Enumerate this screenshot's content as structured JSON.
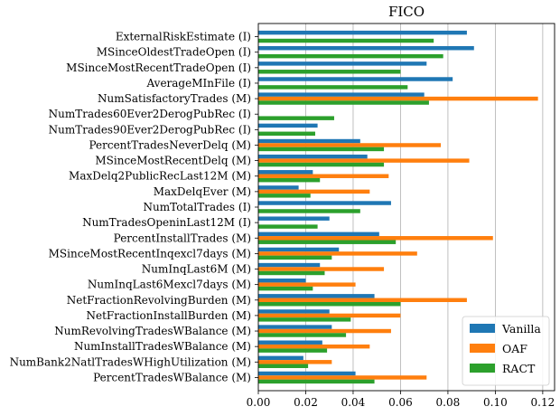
{
  "chart_data": {
    "type": "bar",
    "orientation": "horizontal",
    "title": "FICO",
    "xlabel": "",
    "ylabel": "",
    "xlim": [
      0,
      0.125
    ],
    "xticks": [
      0.0,
      0.02,
      0.04,
      0.06,
      0.08,
      0.1,
      0.12
    ],
    "xtick_labels": [
      "0.00",
      "0.02",
      "0.04",
      "0.06",
      "0.08",
      "0.10",
      "0.12"
    ],
    "grid": "vertical gridlines at x ticks",
    "legend_position": "lower-right",
    "categories": [
      "ExternalRiskEstimate (I)",
      "MSinceOldestTradeOpen (I)",
      "MSinceMostRecentTradeOpen (I)",
      "AverageMInFile (I)",
      "NumSatisfactoryTrades (M)",
      "NumTrades60Ever2DerogPubRec (I)",
      "NumTrades90Ever2DerogPubRec (I)",
      "PercentTradesNeverDelq (M)",
      "MSinceMostRecentDelq (M)",
      "MaxDelq2PublicRecLast12M (M)",
      "MaxDelqEver (M)",
      "NumTotalTrades (I)",
      "NumTradesOpeninLast12M (I)",
      "PercentInstallTrades (M)",
      "MSinceMostRecentInqexcl7days (M)",
      "NumInqLast6M (M)",
      "NumInqLast6Mexcl7days (M)",
      "NetFractionRevolvingBurden (M)",
      "NetFractionInstallBurden (M)",
      "NumRevolvingTradesWBalance (M)",
      "NumInstallTradesWBalance (M)",
      "NumBank2NatlTradesWHighUtilization (M)",
      "PercentTradesWBalance (M)"
    ],
    "series": [
      {
        "name": "Vanilla",
        "color": "#1f77b4",
        "values": [
          0.088,
          0.091,
          0.071,
          0.082,
          0.07,
          0.0,
          0.025,
          0.043,
          0.046,
          0.023,
          0.017,
          0.056,
          0.03,
          0.051,
          0.034,
          0.026,
          0.02,
          0.049,
          0.03,
          0.031,
          0.027,
          0.019,
          0.041
        ]
      },
      {
        "name": "OAF",
        "color": "#ff7f0e",
        "values": [
          0.0,
          0.0,
          0.0,
          0.0,
          0.118,
          0.0,
          0.0,
          0.077,
          0.089,
          0.055,
          0.047,
          0.0,
          0.0,
          0.099,
          0.067,
          0.053,
          0.041,
          0.088,
          0.06,
          0.056,
          0.047,
          0.031,
          0.071
        ]
      },
      {
        "name": "RACT",
        "color": "#2ca02c",
        "values": [
          0.074,
          0.078,
          0.06,
          0.063,
          0.072,
          0.032,
          0.024,
          0.053,
          0.053,
          0.026,
          0.022,
          0.043,
          0.025,
          0.058,
          0.031,
          0.028,
          0.023,
          0.06,
          0.039,
          0.037,
          0.029,
          0.021,
          0.049
        ]
      }
    ]
  }
}
